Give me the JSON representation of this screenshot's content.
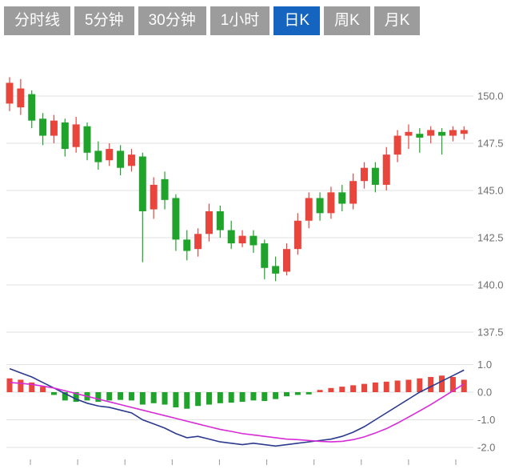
{
  "tabs": [
    {
      "label": "分时线",
      "active": false
    },
    {
      "label": "5分钟",
      "active": false
    },
    {
      "label": "30分钟",
      "active": false
    },
    {
      "label": "1小时",
      "active": false
    },
    {
      "label": "日K",
      "active": true
    },
    {
      "label": "周K",
      "active": false
    },
    {
      "label": "月K",
      "active": false
    }
  ],
  "colors": {
    "up": "#e8453c",
    "down": "#1fa32b",
    "tab_bg": "#9c9c9c",
    "tab_active_bg": "#1565c0",
    "dif_line": "#2b3a8f",
    "dea_line": "#d62bd6",
    "grid": "#e2e2e2",
    "axis_text": "#6f6f6f",
    "tick": "#999999"
  },
  "chart_data": [
    {
      "type": "candlestick",
      "timeframe": "日K",
      "price_axis": [
        {
          "label": "150.0",
          "value": 150.0
        },
        {
          "label": "147.5",
          "value": 147.5
        },
        {
          "label": "145.0",
          "value": 145.0
        },
        {
          "label": "142.5",
          "value": 142.5
        },
        {
          "label": "140.0",
          "value": 140.0
        },
        {
          "label": "137.5",
          "value": 137.5
        }
      ],
      "ylim": [
        136.5,
        152.5
      ],
      "candles_format": [
        "open",
        "high",
        "low",
        "close"
      ],
      "candles": [
        [
          149.6,
          151.0,
          149.2,
          150.7
        ],
        [
          149.4,
          150.9,
          149.0,
          150.4
        ],
        [
          150.1,
          150.3,
          148.3,
          148.7
        ],
        [
          148.8,
          149.1,
          147.4,
          147.9
        ],
        [
          147.9,
          149.0,
          147.5,
          148.7
        ],
        [
          148.6,
          148.8,
          146.8,
          147.2
        ],
        [
          147.3,
          148.9,
          147.0,
          148.5
        ],
        [
          148.4,
          148.6,
          146.6,
          147.0
        ],
        [
          147.1,
          147.6,
          146.1,
          146.5
        ],
        [
          146.6,
          147.5,
          146.3,
          147.2
        ],
        [
          147.1,
          147.4,
          145.8,
          146.2
        ],
        [
          146.3,
          147.2,
          146.0,
          146.9
        ],
        [
          146.8,
          147.0,
          141.2,
          143.9
        ],
        [
          144.0,
          145.7,
          143.5,
          145.3
        ],
        [
          145.6,
          146.0,
          144.0,
          144.5
        ],
        [
          144.6,
          144.8,
          141.8,
          142.4
        ],
        [
          142.4,
          142.9,
          141.3,
          141.8
        ],
        [
          141.9,
          143.0,
          141.5,
          142.7
        ],
        [
          142.7,
          144.3,
          142.3,
          143.9
        ],
        [
          143.9,
          144.2,
          142.5,
          142.9
        ],
        [
          142.9,
          143.4,
          141.9,
          142.2
        ],
        [
          142.2,
          142.9,
          142.0,
          142.6
        ],
        [
          142.6,
          142.9,
          141.7,
          142.1
        ],
        [
          142.2,
          142.4,
          140.3,
          140.9
        ],
        [
          141.0,
          141.5,
          140.2,
          140.6
        ],
        [
          140.7,
          142.2,
          140.5,
          141.9
        ],
        [
          141.9,
          143.8,
          141.6,
          143.4
        ],
        [
          143.4,
          144.9,
          143.0,
          144.6
        ],
        [
          144.6,
          144.9,
          143.4,
          143.8
        ],
        [
          143.8,
          145.2,
          143.5,
          144.9
        ],
        [
          144.9,
          145.3,
          143.9,
          144.3
        ],
        [
          144.3,
          145.9,
          144.0,
          145.5
        ],
        [
          145.5,
          146.5,
          145.1,
          146.2
        ],
        [
          146.2,
          146.5,
          144.9,
          145.3
        ],
        [
          145.3,
          147.3,
          145.0,
          146.9
        ],
        [
          146.9,
          148.2,
          146.5,
          147.9
        ],
        [
          147.9,
          148.5,
          147.2,
          148.1
        ],
        [
          148.0,
          148.3,
          147.0,
          147.8
        ],
        [
          147.9,
          148.4,
          147.5,
          148.2
        ],
        [
          148.1,
          148.3,
          146.9,
          147.9
        ],
        [
          147.9,
          148.4,
          147.6,
          148.2
        ],
        [
          148.0,
          148.4,
          147.7,
          148.2
        ]
      ]
    },
    {
      "type": "macd",
      "axis": [
        {
          "label": "1.0",
          "value": 1.0
        },
        {
          "label": "0.0",
          "value": 0.0
        },
        {
          "label": "-1.0",
          "value": -1.0
        },
        {
          "label": "-2.0",
          "value": -2.0
        }
      ],
      "ylim": [
        -2.4,
        1.2
      ],
      "histogram": [
        0.5,
        0.45,
        0.35,
        0.2,
        -0.1,
        -0.3,
        -0.35,
        -0.3,
        -0.35,
        -0.3,
        -0.28,
        -0.3,
        -0.45,
        -0.4,
        -0.45,
        -0.55,
        -0.6,
        -0.5,
        -0.45,
        -0.4,
        -0.38,
        -0.35,
        -0.3,
        -0.32,
        -0.25,
        -0.15,
        -0.1,
        -0.08,
        0.08,
        0.15,
        0.2,
        0.25,
        0.3,
        0.35,
        0.38,
        0.42,
        0.45,
        0.5,
        0.55,
        0.6,
        0.55,
        0.45
      ],
      "dif": [
        0.85,
        0.7,
        0.55,
        0.35,
        0.15,
        -0.05,
        -0.25,
        -0.4,
        -0.5,
        -0.55,
        -0.65,
        -0.75,
        -1.0,
        -1.15,
        -1.3,
        -1.5,
        -1.65,
        -1.6,
        -1.7,
        -1.8,
        -1.85,
        -1.9,
        -1.85,
        -1.9,
        -1.95,
        -1.9,
        -1.85,
        -1.8,
        -1.75,
        -1.7,
        -1.6,
        -1.45,
        -1.25,
        -1.0,
        -0.75,
        -0.5,
        -0.25,
        0.0,
        0.2,
        0.4,
        0.6,
        0.8
      ],
      "dea": [
        0.35,
        0.32,
        0.28,
        0.22,
        0.15,
        0.05,
        -0.05,
        -0.15,
        -0.25,
        -0.35,
        -0.45,
        -0.55,
        -0.65,
        -0.75,
        -0.85,
        -0.95,
        -1.05,
        -1.15,
        -1.25,
        -1.35,
        -1.42,
        -1.5,
        -1.55,
        -1.6,
        -1.65,
        -1.7,
        -1.72,
        -1.75,
        -1.78,
        -1.8,
        -1.78,
        -1.72,
        -1.62,
        -1.48,
        -1.32,
        -1.12,
        -0.9,
        -0.68,
        -0.45,
        -0.2,
        0.05,
        0.3
      ]
    }
  ],
  "xaxis": {
    "tick_count": 10
  }
}
